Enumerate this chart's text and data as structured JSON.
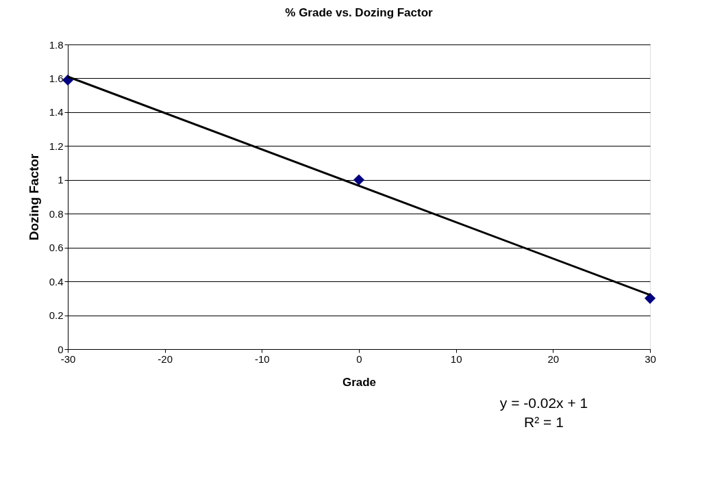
{
  "chart_data": {
    "type": "scatter",
    "title": "%  Grade vs. Dozing Factor",
    "xlabel": "Grade",
    "ylabel": "Dozing Factor",
    "series": [
      {
        "color": "#000080",
        "x": [
          -30,
          0,
          30
        ],
        "values": [
          1.59,
          1.0,
          0.3
        ],
        "marker": "diamond"
      },
      {
        "type": "line",
        "color": "#000000",
        "x": [
          -30,
          30
        ],
        "values": [
          1.61,
          0.32
        ],
        "marker": "none",
        "line_style": "solid"
      }
    ],
    "xlim": [
      -30,
      30
    ],
    "xticks": [
      -30,
      -20,
      -10,
      0,
      10,
      20,
      30
    ],
    "ylim": [
      0,
      1.8
    ],
    "yticks": [
      0,
      0.2,
      0.4,
      0.6,
      0.8,
      1,
      1.2,
      1.4,
      1.6,
      1.8
    ],
    "grid": "y",
    "legend": false,
    "annotations": [
      "y = -0.02x + 1",
      "R² = 1"
    ]
  }
}
